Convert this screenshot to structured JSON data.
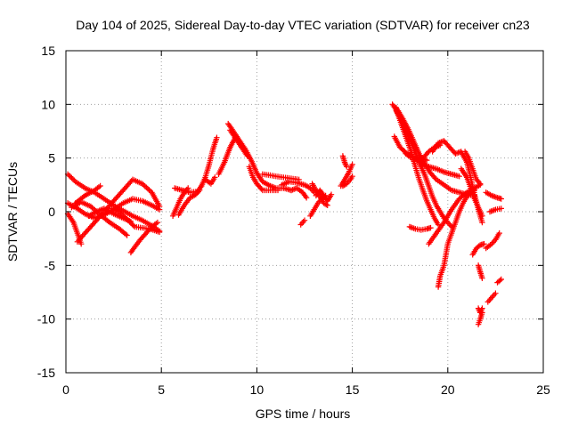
{
  "chart_data": {
    "type": "scatter",
    "title": "Day 104 of 2025, Sidereal Day-to-day VTEC variation (SDTVAR) for receiver cn23",
    "xlabel": "GPS time / hours",
    "ylabel": "SDTVAR / TECUs",
    "xlim": [
      0,
      25
    ],
    "ylim": [
      -15,
      15
    ],
    "xticks": [
      "0",
      "5",
      "10",
      "15",
      "20",
      "25"
    ],
    "yticks": [
      "-15",
      "-10",
      "-5",
      "0",
      "5",
      "10",
      "15"
    ],
    "grid": true,
    "marker": "plus",
    "color": "#ff0000",
    "segments": [
      [
        [
          0.1,
          3.5
        ],
        [
          0.5,
          2.8
        ],
        [
          1.0,
          2.2
        ],
        [
          1.5,
          1.8
        ],
        [
          2.0,
          1.2
        ],
        [
          2.5,
          0.6
        ],
        [
          3.0,
          0.1
        ],
        [
          3.5,
          -0.4
        ],
        [
          4.0,
          -0.8
        ],
        [
          4.5,
          -1.3
        ],
        [
          4.9,
          -1.8
        ]
      ],
      [
        [
          0.1,
          0.8
        ],
        [
          0.6,
          0.3
        ],
        [
          1.0,
          -0.2
        ],
        [
          1.5,
          -0.6
        ],
        [
          2.0,
          -0.3
        ],
        [
          2.5,
          0.2
        ],
        [
          3.0,
          0.8
        ],
        [
          3.5,
          1.2
        ],
        [
          4.0,
          1.0
        ],
        [
          4.5,
          0.6
        ],
        [
          4.9,
          0.2
        ]
      ],
      [
        [
          0.1,
          -0.2
        ],
        [
          0.4,
          -1.0
        ],
        [
          0.6,
          -2.0
        ],
        [
          0.8,
          -3.0
        ]
      ],
      [
        [
          0.5,
          0.8
        ],
        [
          1.0,
          1.5
        ],
        [
          1.5,
          2.0
        ],
        [
          1.8,
          2.4
        ]
      ],
      [
        [
          0.6,
          -2.8
        ],
        [
          1.0,
          -2.0
        ],
        [
          1.5,
          -1.0
        ],
        [
          2.0,
          0.0
        ],
        [
          2.5,
          1.0
        ],
        [
          3.0,
          2.0
        ],
        [
          3.5,
          3.0
        ],
        [
          4.0,
          2.6
        ],
        [
          4.5,
          1.8
        ],
        [
          4.9,
          0.5
        ]
      ],
      [
        [
          0.3,
          0.4
        ],
        [
          0.8,
          0.9
        ],
        [
          1.3,
          0.5
        ],
        [
          1.8,
          -0.3
        ],
        [
          2.3,
          -1.0
        ],
        [
          2.8,
          -1.6
        ],
        [
          3.2,
          -2.2
        ]
      ],
      [
        [
          2.4,
          0.3
        ],
        [
          2.8,
          0.0
        ],
        [
          3.2,
          -0.7
        ],
        [
          3.6,
          -1.4
        ],
        [
          4.0,
          -1.5
        ],
        [
          4.4,
          -1.6
        ],
        [
          4.9,
          -1.9
        ]
      ],
      [
        [
          3.4,
          -3.8
        ],
        [
          3.6,
          -3.3
        ],
        [
          3.9,
          -2.6
        ],
        [
          4.2,
          -2.0
        ],
        [
          4.5,
          -1.4
        ],
        [
          4.8,
          -1.0
        ]
      ],
      [
        [
          1.2,
          -0.4
        ],
        [
          1.6,
          0.0
        ],
        [
          2.0,
          0.3
        ],
        [
          2.5,
          -0.2
        ],
        [
          3.0,
          -0.6
        ],
        [
          3.4,
          -0.9
        ]
      ],
      [
        [
          5.6,
          -0.4
        ],
        [
          5.8,
          0.4
        ],
        [
          6.0,
          1.2
        ],
        [
          6.2,
          1.8
        ],
        [
          6.4,
          2.2
        ]
      ],
      [
        [
          5.7,
          2.2
        ],
        [
          6.1,
          2.0
        ],
        [
          6.5,
          1.8
        ],
        [
          6.9,
          1.9
        ],
        [
          7.1,
          2.4
        ]
      ],
      [
        [
          5.9,
          -0.3
        ],
        [
          6.2,
          0.6
        ],
        [
          6.5,
          1.3
        ],
        [
          6.8,
          1.6
        ],
        [
          7.0,
          2.0
        ]
      ],
      [
        [
          7.1,
          2.4
        ],
        [
          7.3,
          3.2
        ],
        [
          7.5,
          4.4
        ],
        [
          7.7,
          5.8
        ],
        [
          7.9,
          6.9
        ]
      ],
      [
        [
          7.3,
          3.0
        ],
        [
          7.6,
          2.6
        ],
        [
          7.8,
          3.2
        ]
      ],
      [
        [
          8.0,
          3.5
        ],
        [
          8.3,
          4.6
        ],
        [
          8.6,
          6.0
        ],
        [
          8.9,
          7.0
        ]
      ],
      [
        [
          8.5,
          8.2
        ],
        [
          8.8,
          7.4
        ],
        [
          9.1,
          6.6
        ],
        [
          9.4,
          5.8
        ],
        [
          9.7,
          4.8
        ],
        [
          10.0,
          3.6
        ],
        [
          10.3,
          2.8
        ],
        [
          10.7,
          2.4
        ],
        [
          11.0,
          2.2
        ],
        [
          11.4,
          2.2
        ],
        [
          11.8,
          2.0
        ]
      ],
      [
        [
          8.6,
          7.6
        ],
        [
          8.9,
          6.8
        ],
        [
          9.2,
          6.0
        ],
        [
          9.5,
          5.2
        ]
      ],
      [
        [
          9.6,
          4.2
        ],
        [
          9.8,
          3.2
        ],
        [
          10.0,
          2.6
        ],
        [
          10.3,
          2.0
        ],
        [
          10.7,
          2.0
        ],
        [
          11.1,
          2.0
        ]
      ],
      [
        [
          10.3,
          3.5
        ],
        [
          10.7,
          3.4
        ],
        [
          11.0,
          3.3
        ],
        [
          11.4,
          3.2
        ],
        [
          11.8,
          3.1
        ],
        [
          12.2,
          3.0
        ]
      ],
      [
        [
          11.3,
          2.5
        ],
        [
          11.7,
          2.8
        ],
        [
          12.1,
          2.7
        ],
        [
          12.5,
          2.5
        ],
        [
          12.8,
          2.2
        ],
        [
          13.0,
          1.8
        ]
      ],
      [
        [
          11.8,
          2.0
        ],
        [
          12.1,
          2.2
        ],
        [
          12.4,
          1.8
        ],
        [
          12.6,
          1.3
        ]
      ],
      [
        [
          12.3,
          -1.2
        ],
        [
          12.5,
          -0.8
        ]
      ],
      [
        [
          12.8,
          -0.4
        ],
        [
          13.0,
          0.2
        ],
        [
          13.2,
          0.8
        ],
        [
          13.4,
          1.2
        ],
        [
          13.6,
          1.5
        ]
      ],
      [
        [
          12.9,
          2.6
        ],
        [
          13.1,
          2.0
        ],
        [
          13.3,
          1.4
        ],
        [
          13.5,
          0.8
        ],
        [
          13.7,
          0.6
        ]
      ],
      [
        [
          13.1,
          1.5
        ],
        [
          13.3,
          2.0
        ],
        [
          13.5,
          1.5
        ],
        [
          13.7,
          1.0
        ],
        [
          13.9,
          1.6
        ]
      ],
      [
        [
          14.4,
          2.4
        ],
        [
          14.6,
          3.0
        ],
        [
          14.8,
          3.6
        ],
        [
          15.0,
          4.4
        ]
      ],
      [
        [
          14.5,
          2.4
        ],
        [
          14.7,
          2.6
        ],
        [
          14.9,
          3.0
        ],
        [
          15.0,
          3.3
        ]
      ],
      [
        [
          14.5,
          5.2
        ],
        [
          14.6,
          4.6
        ],
        [
          14.7,
          4.2
        ]
      ],
      [
        [
          17.1,
          10.0
        ],
        [
          17.3,
          9.5
        ],
        [
          17.5,
          8.5
        ],
        [
          17.7,
          7.5
        ],
        [
          17.9,
          6.5
        ],
        [
          18.1,
          5.5
        ],
        [
          18.3,
          4.2
        ],
        [
          18.5,
          3.0
        ],
        [
          18.7,
          2.0
        ],
        [
          18.9,
          1.0
        ],
        [
          19.1,
          0.2
        ],
        [
          19.3,
          -0.6
        ],
        [
          19.5,
          -1.2
        ]
      ],
      [
        [
          17.2,
          7.0
        ],
        [
          17.5,
          6.0
        ],
        [
          17.8,
          5.5
        ],
        [
          18.1,
          5.2
        ],
        [
          18.4,
          4.8
        ],
        [
          18.7,
          4.4
        ],
        [
          19.0,
          4.2
        ],
        [
          19.4,
          4.0
        ],
        [
          19.8,
          3.7
        ],
        [
          20.2,
          3.5
        ],
        [
          20.6,
          3.3
        ]
      ],
      [
        [
          17.3,
          9.7
        ],
        [
          17.6,
          8.8
        ],
        [
          17.9,
          7.8
        ],
        [
          18.2,
          6.6
        ],
        [
          18.5,
          5.4
        ],
        [
          18.8,
          4.4
        ],
        [
          19.1,
          3.6
        ],
        [
          19.4,
          3.0
        ],
        [
          19.8,
          2.5
        ],
        [
          20.2,
          2.0
        ],
        [
          20.6,
          1.8
        ],
        [
          21.0,
          1.6
        ],
        [
          21.4,
          1.5
        ]
      ],
      [
        [
          17.3,
          9.4
        ],
        [
          17.6,
          8.4
        ],
        [
          17.9,
          7.2
        ],
        [
          18.2,
          6.0
        ],
        [
          18.5,
          4.6
        ],
        [
          18.8,
          3.4
        ],
        [
          19.0,
          2.4
        ],
        [
          19.2,
          1.4
        ],
        [
          19.4,
          0.6
        ],
        [
          19.6,
          0.0
        ],
        [
          19.8,
          -0.6
        ],
        [
          20.0,
          -1.0
        ],
        [
          20.2,
          -1.4
        ]
      ],
      [
        [
          17.8,
          5.4
        ],
        [
          18.1,
          5.0
        ],
        [
          18.5,
          5.0
        ],
        [
          18.9,
          4.8
        ]
      ],
      [
        [
          18.0,
          -1.4
        ],
        [
          18.3,
          -1.6
        ],
        [
          18.6,
          -1.7
        ],
        [
          18.9,
          -1.6
        ],
        [
          19.1,
          -1.5
        ]
      ],
      [
        [
          18.7,
          5.0
        ],
        [
          19.0,
          5.6
        ],
        [
          19.3,
          6.0
        ],
        [
          19.6,
          6.2
        ]
      ],
      [
        [
          19.2,
          5.6
        ],
        [
          19.5,
          6.4
        ],
        [
          19.8,
          6.6
        ],
        [
          20.1,
          6.0
        ],
        [
          20.4,
          5.4
        ],
        [
          20.7,
          5.6
        ],
        [
          21.0,
          4.6
        ],
        [
          21.2,
          3.2
        ],
        [
          21.4,
          1.6
        ],
        [
          21.6,
          0.2
        ],
        [
          21.8,
          -1.0
        ]
      ],
      [
        [
          19.0,
          -3.0
        ],
        [
          19.4,
          -2.0
        ],
        [
          19.8,
          -1.0
        ],
        [
          20.2,
          0.2
        ],
        [
          20.6,
          1.2
        ],
        [
          21.0,
          1.8
        ],
        [
          21.4,
          2.2
        ],
        [
          21.7,
          2.5
        ]
      ],
      [
        [
          19.5,
          -7.0
        ],
        [
          19.6,
          -6.0
        ],
        [
          19.8,
          -5.0
        ],
        [
          19.9,
          -4.0
        ],
        [
          20.0,
          -3.0
        ],
        [
          20.2,
          -2.0
        ],
        [
          20.4,
          -1.0
        ],
        [
          20.6,
          0.0
        ],
        [
          20.8,
          0.8
        ],
        [
          21.0,
          1.4
        ],
        [
          21.2,
          1.8
        ],
        [
          21.4,
          2.0
        ]
      ],
      [
        [
          20.7,
          4.0
        ],
        [
          21.0,
          3.2
        ],
        [
          21.2,
          2.2
        ],
        [
          21.4,
          1.2
        ],
        [
          21.6,
          0.4
        ],
        [
          21.8,
          -0.4
        ]
      ],
      [
        [
          20.9,
          5.6
        ],
        [
          21.1,
          5.0
        ],
        [
          21.3,
          4.0
        ],
        [
          21.5,
          3.0
        ],
        [
          21.7,
          2.6
        ]
      ],
      [
        [
          21.3,
          -4.0
        ],
        [
          21.5,
          -3.4
        ],
        [
          21.7,
          -3.1
        ],
        [
          21.9,
          -3.0
        ]
      ],
      [
        [
          21.6,
          -5.0
        ],
        [
          21.7,
          -5.6
        ],
        [
          21.8,
          -6.2
        ]
      ],
      [
        [
          21.6,
          -9.0
        ],
        [
          21.7,
          -9.4
        ],
        [
          21.8,
          -9.0
        ]
      ],
      [
        [
          21.6,
          -10.5
        ],
        [
          21.7,
          -10.0
        ],
        [
          21.8,
          -9.4
        ]
      ],
      [
        [
          22.0,
          1.8
        ],
        [
          22.3,
          1.5
        ],
        [
          22.6,
          1.3
        ],
        [
          22.8,
          1.2
        ]
      ],
      [
        [
          22.2,
          0.0
        ],
        [
          22.5,
          0.2
        ],
        [
          22.8,
          0.3
        ]
      ],
      [
        [
          22.0,
          -3.4
        ],
        [
          22.3,
          -3.0
        ],
        [
          22.5,
          -2.6
        ],
        [
          22.7,
          -2.0
        ]
      ],
      [
        [
          22.1,
          -8.4
        ],
        [
          22.3,
          -8.0
        ],
        [
          22.5,
          -7.6
        ]
      ],
      [
        [
          22.6,
          -6.6
        ],
        [
          22.8,
          -6.3
        ]
      ]
    ]
  }
}
